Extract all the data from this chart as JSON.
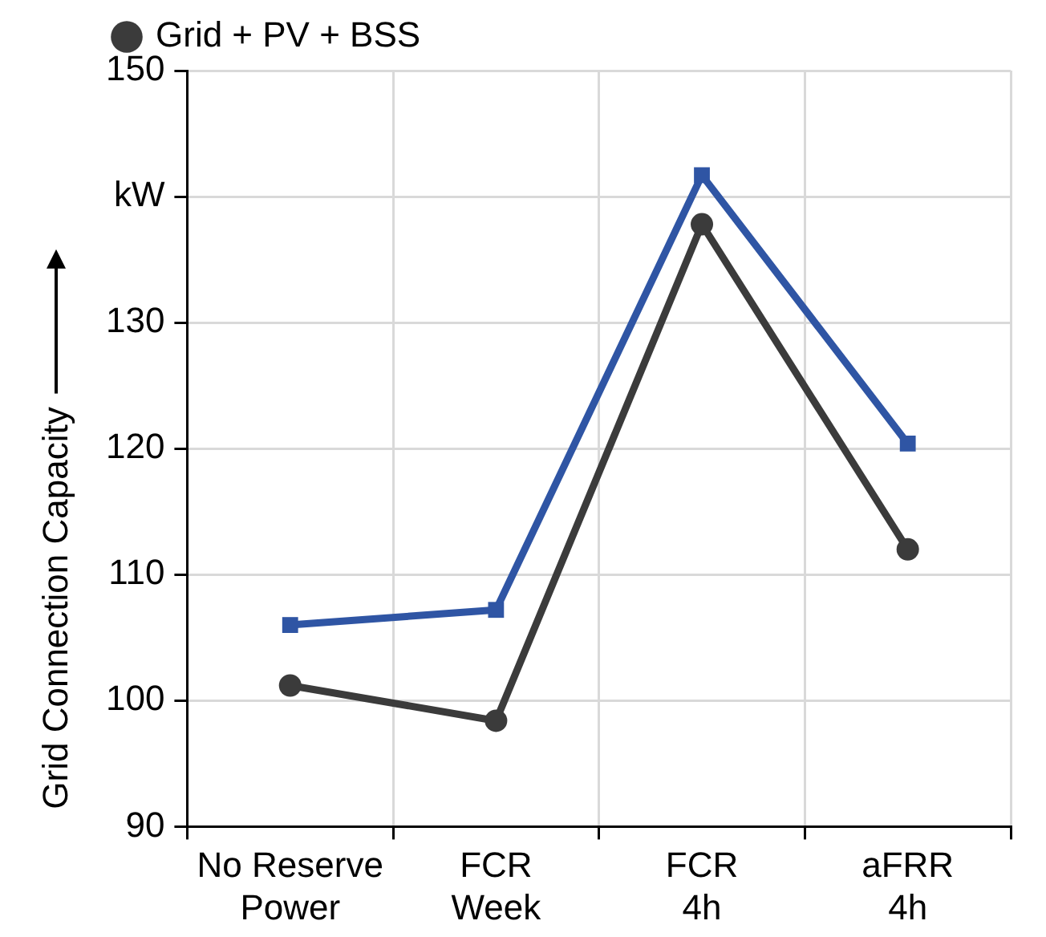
{
  "chart_data": {
    "type": "line",
    "ylabel": "Grid Connection Capacity",
    "categories": [
      "No Reserve\nPower",
      "FCR\nWeek",
      "FCR\n4h",
      "aFRR\n4h"
    ],
    "series": [
      {
        "color": "#2f55a4",
        "marker": "square",
        "values": [
          106,
          107.2,
          141.7,
          120.4
        ]
      },
      {
        "name": "Grid + PV + BSS",
        "color": "#3b3b3b",
        "marker": "circle",
        "values": [
          101.2,
          98.4,
          137.8,
          112
        ]
      }
    ],
    "ylim": [
      90,
      150
    ],
    "yticks": [
      90,
      100,
      110,
      120,
      130,
      {
        "value": 140,
        "label": "kW"
      },
      150
    ],
    "grid": true,
    "legend": "top left",
    "line_style": "solid"
  }
}
